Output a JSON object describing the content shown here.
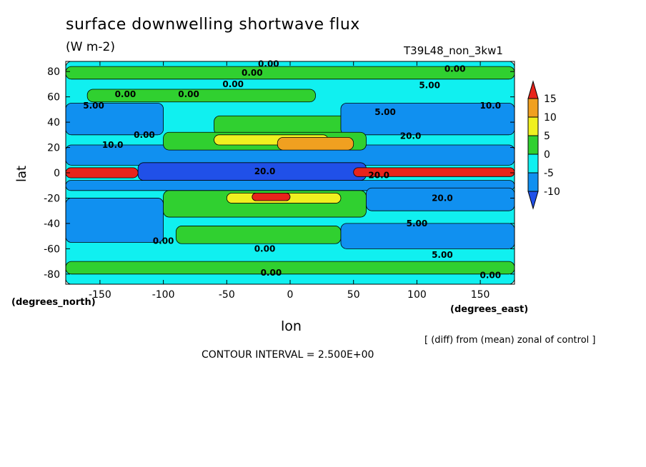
{
  "header": {
    "title": "surface downwelling shortwave flux",
    "units": "(W m-2)",
    "run_id": "T39L48_non_3kw1"
  },
  "footer": {
    "contour_interval": "CONTOUR INTERVAL = 2.500E+00",
    "note": "[ (diff) from (mean) zonal of control ]"
  },
  "chart_data": {
    "type": "heatmap",
    "title": "surface downwelling shortwave flux",
    "xlabel": "lon",
    "ylabel": "lat",
    "x_unit_label": "(degrees_east)",
    "y_unit_label": "(degrees_north)",
    "xlim": [
      -177,
      177
    ],
    "ylim": [
      -88,
      88
    ],
    "x_ticks": [
      -150,
      -100,
      -50,
      0,
      50,
      100,
      150
    ],
    "x_tick_labels": [
      "-150",
      "-100",
      "-50",
      "0",
      "50",
      "100",
      "150"
    ],
    "y_ticks": [
      80,
      60,
      40,
      20,
      0,
      -20,
      -40,
      -60,
      -80
    ],
    "y_tick_labels": [
      "80",
      "60",
      "40",
      "20",
      "0",
      "-20",
      "-40",
      "-60",
      "-80"
    ],
    "colorbar": {
      "levels": [
        15,
        10,
        5,
        0,
        -5,
        -10
      ],
      "labels": [
        "15",
        "10",
        "5",
        "0",
        "-5",
        "-10"
      ],
      "colors": [
        "#e8241b",
        "#f0a020",
        "#f0f020",
        "#30d030",
        "#10f0f0",
        "#1090f0",
        "#2050e8"
      ]
    },
    "band_colors": {
      "above_15": "#e8241b",
      "10_15": "#f0a020",
      "5_10": "#f0f020",
      "0_5": "#30d030",
      "m5_0": "#10f0f0",
      "m10_m5": "#1090f0",
      "below_m10": "#2050e8"
    },
    "regions": [
      {
        "lon": [
          -177,
          177
        ],
        "lat": [
          -88,
          88
        ],
        "value": -2
      },
      {
        "lon": [
          -177,
          177
        ],
        "lat": [
          74,
          84
        ],
        "value": 2
      },
      {
        "lon": [
          -160,
          20
        ],
        "lat": [
          56,
          66
        ],
        "value": 2
      },
      {
        "lon": [
          -60,
          60
        ],
        "lat": [
          30,
          45
        ],
        "value": 2
      },
      {
        "lon": [
          -177,
          -100
        ],
        "lat": [
          30,
          55
        ],
        "value": -7
      },
      {
        "lon": [
          40,
          177
        ],
        "lat": [
          30,
          55
        ],
        "value": -7
      },
      {
        "lon": [
          -177,
          177
        ],
        "lat": [
          6,
          22
        ],
        "value": -7
      },
      {
        "lon": [
          -100,
          60
        ],
        "lat": [
          18,
          32
        ],
        "value": 3
      },
      {
        "lon": [
          -60,
          30
        ],
        "lat": [
          22,
          30
        ],
        "value": 7
      },
      {
        "lon": [
          -10,
          50
        ],
        "lat": [
          18,
          28
        ],
        "value": 12
      },
      {
        "lon": [
          -120,
          60
        ],
        "lat": [
          -6,
          8
        ],
        "value": -12
      },
      {
        "lon": [
          -177,
          -120
        ],
        "lat": [
          -4,
          4
        ],
        "value": 18
      },
      {
        "lon": [
          50,
          177
        ],
        "lat": [
          -3,
          4
        ],
        "value": 18
      },
      {
        "lon": [
          -177,
          177
        ],
        "lat": [
          -14,
          -6
        ],
        "value": -7
      },
      {
        "lon": [
          -100,
          60
        ],
        "lat": [
          -35,
          -14
        ],
        "value": 3
      },
      {
        "lon": [
          -50,
          40
        ],
        "lat": [
          -24,
          -16
        ],
        "value": 8
      },
      {
        "lon": [
          -30,
          0
        ],
        "lat": [
          -22,
          -16
        ],
        "value": 16
      },
      {
        "lon": [
          60,
          177
        ],
        "lat": [
          -30,
          -12
        ],
        "value": -7
      },
      {
        "lon": [
          -177,
          -100
        ],
        "lat": [
          -55,
          -20
        ],
        "value": -7
      },
      {
        "lon": [
          -90,
          40
        ],
        "lat": [
          -56,
          -42
        ],
        "value": 2
      },
      {
        "lon": [
          40,
          177
        ],
        "lat": [
          -60,
          -40
        ],
        "value": -7
      },
      {
        "lon": [
          -177,
          177
        ],
        "lat": [
          -80,
          -70
        ],
        "value": 2
      }
    ],
    "contour_labels": [
      {
        "lon": -17,
        "lat": 86,
        "text": "0.00"
      },
      {
        "lon": -30,
        "lat": 79,
        "text": "0.00"
      },
      {
        "lon": -45,
        "lat": 70,
        "text": "0.00"
      },
      {
        "lon": -130,
        "lat": 62,
        "text": "0.00"
      },
      {
        "lon": -80,
        "lat": 62,
        "text": "0.00"
      },
      {
        "lon": -155,
        "lat": 53,
        "text": "5.00"
      },
      {
        "lon": 110,
        "lat": 69,
        "text": "5.00"
      },
      {
        "lon": 158,
        "lat": 53,
        "text": "10.0"
      },
      {
        "lon": 130,
        "lat": 82,
        "text": "0.00"
      },
      {
        "lon": 75,
        "lat": 48,
        "text": "5.00"
      },
      {
        "lon": -115,
        "lat": 30,
        "text": "0.00"
      },
      {
        "lon": -140,
        "lat": 22,
        "text": "10.0"
      },
      {
        "lon": 95,
        "lat": 29,
        "text": "20.0"
      },
      {
        "lon": -20,
        "lat": 1,
        "text": "20.0"
      },
      {
        "lon": 70,
        "lat": -2,
        "text": "20.0"
      },
      {
        "lon": 120,
        "lat": -20,
        "text": "20.0"
      },
      {
        "lon": 100,
        "lat": -40,
        "text": "5.00"
      },
      {
        "lon": -100,
        "lat": -54,
        "text": "0.00"
      },
      {
        "lon": -20,
        "lat": -60,
        "text": "0.00"
      },
      {
        "lon": 120,
        "lat": -65,
        "text": "5.00"
      },
      {
        "lon": -15,
        "lat": -79,
        "text": "0.00"
      },
      {
        "lon": 158,
        "lat": -81,
        "text": "0.00"
      }
    ]
  }
}
